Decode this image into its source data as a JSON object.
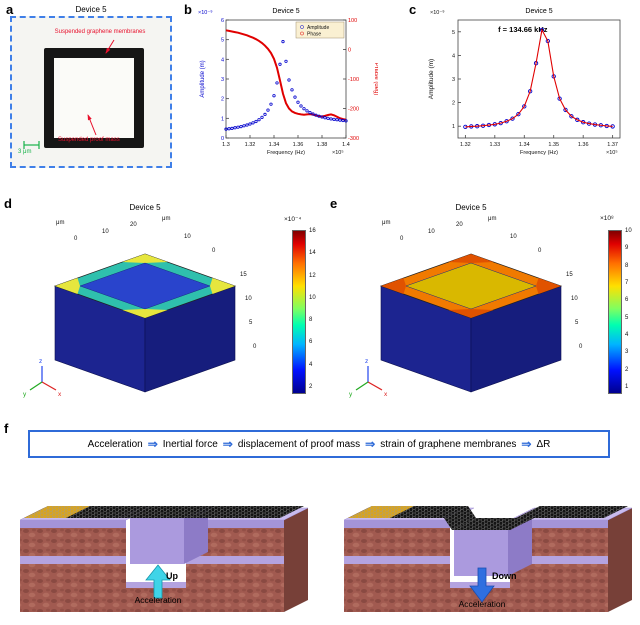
{
  "panels": {
    "a": {
      "label": "a",
      "title": "Device 5",
      "membrane_note": "Suspended graphene membranes",
      "mass_note": "Suspended proof mass",
      "scale_bar": "3 μm"
    },
    "b": {
      "label": "b"
    },
    "c": {
      "label": "c"
    },
    "d": {
      "label": "d",
      "title": "Device 5",
      "colorbar": {
        "multiplier": "×10⁻⁴",
        "ticks": [
          "16",
          "14",
          "12",
          "10",
          "8",
          "6",
          "4",
          "2"
        ]
      },
      "axis_ticks": {
        "unit": "μm",
        "left": [
          "0",
          "10",
          "20"
        ],
        "right": [
          "10",
          "0"
        ],
        "vert": [
          "15",
          "10",
          "5",
          "0"
        ]
      },
      "triad": [
        "y",
        "z",
        "x"
      ]
    },
    "e": {
      "label": "e",
      "title": "Device 5",
      "colorbar": {
        "multiplier": "×10⁸",
        "ticks": [
          "10",
          "9",
          "8",
          "7",
          "6",
          "5",
          "4",
          "3",
          "2",
          "1"
        ]
      },
      "axis_ticks": {
        "unit": "μm",
        "left": [
          "0",
          "10",
          "20"
        ],
        "right": [
          "10",
          "0"
        ],
        "vert": [
          "15",
          "10",
          "5",
          "0"
        ]
      },
      "triad": [
        "y",
        "z",
        "x"
      ]
    },
    "f": {
      "label": "f",
      "flow": {
        "items": [
          "Acceleration",
          "Inertial force",
          "displacement of proof mass",
          "strain of graphene membranes",
          "ΔR"
        ],
        "arrow": "⇒"
      },
      "left": {
        "direction_label": "Up",
        "accel_label": "Acceleration"
      },
      "right": {
        "direction_label": "Down",
        "accel_label": "Acceleration"
      }
    }
  },
  "chart_data": [
    {
      "type": "line",
      "title": "Device 5",
      "xlabel": "Frequency (Hz)",
      "x_scale_label": "×10⁵",
      "xlim": [
        1.3,
        1.4
      ],
      "xticks": [
        1.3,
        1.32,
        1.34,
        1.36,
        1.38,
        1.4
      ],
      "left_axis": {
        "label": "Amplitude (m)",
        "scale_label": "×10⁻⁹",
        "lim": [
          0,
          6
        ],
        "ticks": [
          0,
          1,
          2,
          3,
          4,
          5,
          6
        ],
        "color": "#0000cd"
      },
      "right_axis": {
        "label": "Phase (deg)",
        "lim": [
          -300,
          100
        ],
        "ticks": [
          -300,
          -200,
          -100,
          0,
          100
        ],
        "color": "#e00000"
      },
      "legend": [
        "Amplitude",
        "Phase"
      ],
      "legend_position": "top-right",
      "grid": false,
      "x": [
        1.3,
        1.3025,
        1.305,
        1.3075,
        1.31,
        1.3125,
        1.315,
        1.3175,
        1.32,
        1.3225,
        1.325,
        1.3275,
        1.33,
        1.3325,
        1.335,
        1.3375,
        1.34,
        1.3425,
        1.345,
        1.3475,
        1.35,
        1.3525,
        1.355,
        1.3575,
        1.36,
        1.3625,
        1.365,
        1.3675,
        1.37,
        1.3725,
        1.375,
        1.3775,
        1.38,
        1.3825,
        1.385,
        1.3875,
        1.39,
        1.3925,
        1.395,
        1.3975,
        1.4
      ],
      "series": [
        {
          "name": "Amplitude",
          "axis": "left",
          "values": [
            0.45,
            0.47,
            0.49,
            0.52,
            0.55,
            0.58,
            0.62,
            0.66,
            0.71,
            0.77,
            0.84,
            0.93,
            1.05,
            1.2,
            1.42,
            1.72,
            2.15,
            2.8,
            3.75,
            4.9,
            3.9,
            2.95,
            2.45,
            2.08,
            1.82,
            1.63,
            1.49,
            1.38,
            1.29,
            1.22,
            1.16,
            1.11,
            1.07,
            1.03,
            1.0,
            0.97,
            0.95,
            0.93,
            0.91,
            0.89,
            0.87
          ]
        },
        {
          "name": "Phase",
          "axis": "right",
          "values": [
            65,
            63,
            61,
            59,
            57,
            54,
            51,
            48,
            44,
            40,
            35,
            29,
            22,
            13,
            2,
            -12,
            -32,
            -62,
            -105,
            -150,
            -182,
            -200,
            -210,
            -215,
            -218,
            -220,
            -221,
            -220,
            -219,
            -221,
            -224,
            -226,
            -227,
            -225,
            -222,
            -220,
            -223,
            -228,
            -233,
            -236,
            -238
          ]
        }
      ]
    },
    {
      "type": "scatter",
      "title": "Device 5",
      "annotation": "f = 134.66 kHz",
      "xlabel": "Frequency (Hz)",
      "x_scale_label": "×10⁵",
      "ylabel": "Amplitude (m)",
      "y_scale_label": "×10⁻⁹",
      "xlim": [
        1.3175,
        1.3725
      ],
      "xticks": [
        1.32,
        1.33,
        1.34,
        1.35,
        1.36,
        1.37
      ],
      "ylim": [
        0.5,
        5.5
      ],
      "yticks": [
        1,
        2,
        3,
        4,
        5
      ],
      "grid": false,
      "x": [
        1.32,
        1.322,
        1.324,
        1.326,
        1.328,
        1.33,
        1.332,
        1.334,
        1.336,
        1.338,
        1.34,
        1.342,
        1.344,
        1.346,
        1.348,
        1.35,
        1.352,
        1.354,
        1.356,
        1.358,
        1.36,
        1.362,
        1.364,
        1.366,
        1.368,
        1.37
      ],
      "values": [
        0.97,
        0.99,
        1.0,
        1.02,
        1.05,
        1.08,
        1.13,
        1.21,
        1.32,
        1.51,
        1.84,
        2.48,
        3.67,
        5.08,
        4.61,
        3.11,
        2.17,
        1.69,
        1.42,
        1.27,
        1.17,
        1.11,
        1.07,
        1.04,
        1.01,
        0.99
      ]
    }
  ],
  "colors": {
    "figure_accent_blue": "#2f6bd8",
    "dashed_border_blue": "#3f7fe8",
    "annotation_red": "#e8112d",
    "scale_green": "#18b24a",
    "amplitude_blue": "#0000cd",
    "phase_red": "#e00000",
    "up_arrow": "#3fd4e8",
    "down_arrow": "#2f6fe0",
    "sim_ring_d": "#2fc0ad",
    "sim_inner_d": "#2944cc",
    "sim_corner_d": "#e6e63e",
    "sim_ring_e": "#f07a00",
    "sim_inner_e": "#d9b800",
    "sim_corner_e": "#e05200"
  }
}
